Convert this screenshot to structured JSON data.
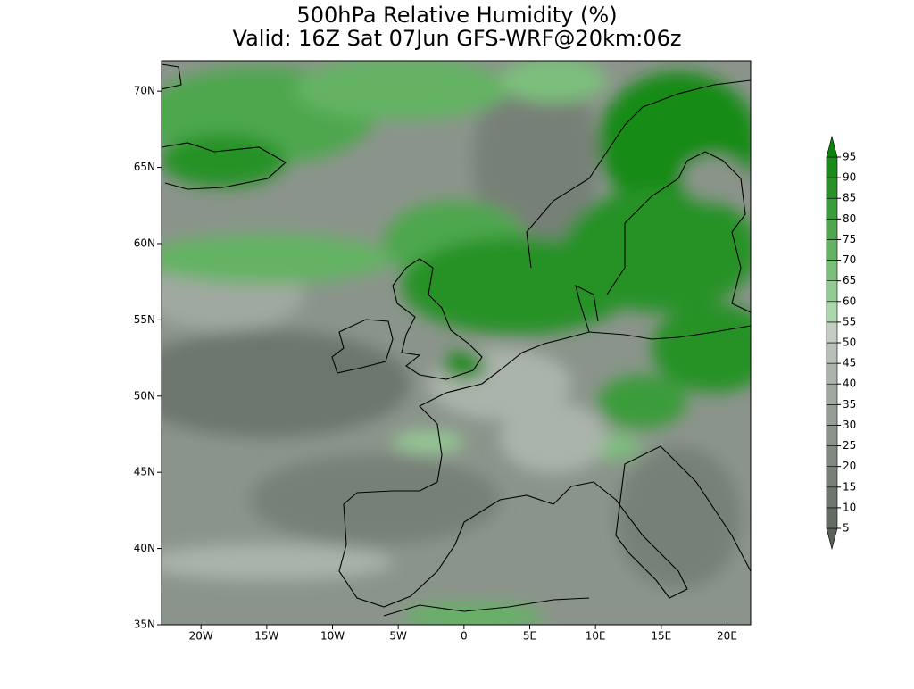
{
  "title": [
    "500hPa Relative Humidity (%)",
    "Valid: 16Z Sat 07Jun GFS-WRF@20km:06z"
  ],
  "map": {
    "xlim": [
      -23,
      21.8
    ],
    "ylim": [
      35,
      72
    ],
    "xticks": [
      {
        "value": -20,
        "label": "20W"
      },
      {
        "value": -15,
        "label": "15W"
      },
      {
        "value": -10,
        "label": "10W"
      },
      {
        "value": -5,
        "label": "5W"
      },
      0,
      {
        "value": 5,
        "label": "5E"
      },
      {
        "value": 10,
        "label": "10E"
      },
      {
        "value": 15,
        "label": "15E"
      },
      {
        "value": 20,
        "label": "20E"
      }
    ],
    "yticks": [
      {
        "value": 35,
        "label": "35N"
      },
      {
        "value": 40,
        "label": "40N"
      },
      {
        "value": 45,
        "label": "45N"
      },
      {
        "value": 50,
        "label": "50N"
      },
      {
        "value": 55,
        "label": "55N"
      },
      {
        "value": 60,
        "label": "60N"
      },
      {
        "value": 65,
        "label": "65N"
      },
      {
        "value": 70,
        "label": "70N"
      }
    ]
  },
  "colorbar": {
    "levels": [
      5,
      10,
      15,
      20,
      25,
      30,
      35,
      40,
      45,
      50,
      55,
      60,
      65,
      70,
      75,
      80,
      85,
      90,
      95
    ],
    "colors": [
      "#596259",
      "#636c63",
      "#6d766d",
      "#778077",
      "#818a81",
      "#8b948b",
      "#959e95",
      "#a0a9a0",
      "#abb4ab",
      "#b7c0b7",
      "#c4ccc4",
      "#acd6ac",
      "#94cb94",
      "#7cbf7c",
      "#64b364",
      "#4ea74e",
      "#3a9c3a",
      "#289228",
      "#198b19",
      "#0c840c"
    ]
  }
}
